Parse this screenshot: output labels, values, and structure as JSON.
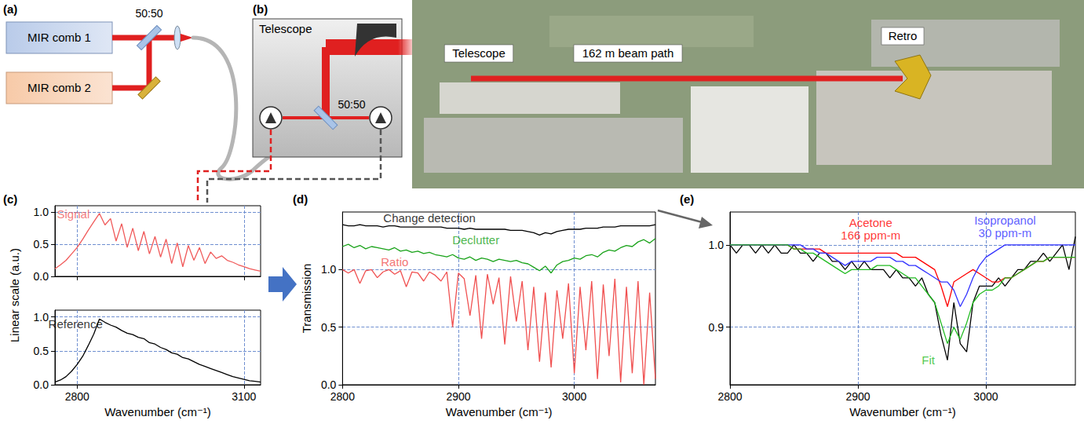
{
  "diagram": {
    "panel_a": {
      "label": "(a)",
      "comb1": "MIR comb 1",
      "comb2": "MIR comb 2",
      "splitter": "50:50"
    },
    "panel_b": {
      "label": "(b)",
      "telescope": "Telescope",
      "splitter": "50:50"
    },
    "photo": {
      "telescope": "Telescope",
      "path": "162 m beam path",
      "retro": "Retro"
    }
  },
  "chart_data": [
    {
      "panel": "(c)",
      "type": "line",
      "xlabel": "Wavenumber (cm⁻¹)",
      "ylabel": "Linear scale (a.u.)",
      "x": [
        2760,
        2770,
        2780,
        2790,
        2800,
        2810,
        2820,
        2830,
        2840,
        2850,
        2860,
        2870,
        2880,
        2890,
        2900,
        2910,
        2920,
        2930,
        2940,
        2950,
        2960,
        2970,
        2980,
        2990,
        3000,
        3010,
        3020,
        3030,
        3040,
        3050,
        3060,
        3070,
        3080,
        3090,
        3100,
        3110,
        3120,
        3130
      ],
      "xlim": [
        2760,
        3130
      ],
      "xticks": [
        2800,
        3100
      ],
      "ylim": [
        0,
        1.1
      ],
      "yticks": [
        {
          "value": 0,
          "label": "0.0"
        },
        {
          "value": 0.5,
          "label": "0.5"
        },
        {
          "value": 1,
          "label": "1.0"
        }
      ],
      "grid": true,
      "series": [
        {
          "name": "Signal",
          "color": "#f05a5a",
          "values": [
            0.12,
            0.18,
            0.25,
            0.35,
            0.45,
            0.58,
            0.72,
            0.85,
            0.98,
            0.8,
            0.9,
            0.55,
            0.82,
            0.45,
            0.75,
            0.4,
            0.7,
            0.35,
            0.62,
            0.3,
            0.58,
            0.2,
            0.52,
            0.15,
            0.48,
            0.25,
            0.45,
            0.2,
            0.38,
            0.28,
            0.32,
            0.25,
            0.22,
            0.18,
            0.15,
            0.12,
            0.1,
            0.08
          ]
        },
        {
          "name": "Reference",
          "color": "#000000",
          "values": [
            0.04,
            0.07,
            0.12,
            0.2,
            0.3,
            0.42,
            0.58,
            0.75,
            0.97,
            0.92,
            0.88,
            0.85,
            0.8,
            0.76,
            0.74,
            0.7,
            0.68,
            0.62,
            0.6,
            0.55,
            0.52,
            0.47,
            0.45,
            0.4,
            0.38,
            0.34,
            0.3,
            0.27,
            0.24,
            0.21,
            0.18,
            0.15,
            0.12,
            0.1,
            0.08,
            0.06,
            0.05,
            0.04
          ]
        }
      ],
      "annotations": [
        {
          "series": 0,
          "x": 2793,
          "y": 0.97
        },
        {
          "series": 1,
          "x": 2797,
          "y": 0.9
        }
      ]
    },
    {
      "panel": "(d)",
      "type": "line",
      "xlabel": "Wavenumber (cm⁻¹)",
      "ylabel": "Transmission",
      "x": [
        2800,
        2805,
        2810,
        2815,
        2820,
        2825,
        2830,
        2835,
        2840,
        2845,
        2850,
        2855,
        2860,
        2865,
        2870,
        2875,
        2880,
        2885,
        2890,
        2895,
        2900,
        2905,
        2910,
        2915,
        2920,
        2925,
        2930,
        2935,
        2940,
        2945,
        2950,
        2955,
        2960,
        2965,
        2970,
        2975,
        2980,
        2985,
        2990,
        2995,
        3000,
        3005,
        3010,
        3015,
        3020,
        3025,
        3030,
        3035,
        3040,
        3045,
        3050,
        3055,
        3060,
        3065,
        3070
      ],
      "xlim": [
        2800,
        3070
      ],
      "xticks": [
        2800,
        2900,
        3000
      ],
      "ylim": [
        0,
        1.5
      ],
      "yticks": [
        {
          "value": 0,
          "label": "0.0"
        },
        {
          "value": 0.5,
          "label": "0.5"
        },
        {
          "value": 1,
          "label": "1.0"
        }
      ],
      "grid": true,
      "series": [
        {
          "name": "Change detection",
          "color": "#000000",
          "values": [
            1.39,
            1.38,
            1.38,
            1.39,
            1.38,
            1.38,
            1.38,
            1.37,
            1.38,
            1.38,
            1.37,
            1.37,
            1.37,
            1.37,
            1.37,
            1.37,
            1.37,
            1.37,
            1.36,
            1.36,
            1.36,
            1.35,
            1.36,
            1.35,
            1.35,
            1.35,
            1.35,
            1.35,
            1.35,
            1.34,
            1.34,
            1.34,
            1.33,
            1.32,
            1.3,
            1.32,
            1.31,
            1.33,
            1.34,
            1.35,
            1.35,
            1.35,
            1.36,
            1.36,
            1.36,
            1.37,
            1.37,
            1.37,
            1.38,
            1.38,
            1.38,
            1.38,
            1.38,
            1.38,
            1.39
          ]
        },
        {
          "name": "Declutter",
          "color": "#1aa31a",
          "values": [
            1.2,
            1.22,
            1.19,
            1.21,
            1.18,
            1.2,
            1.19,
            1.18,
            1.17,
            1.19,
            1.16,
            1.17,
            1.15,
            1.16,
            1.14,
            1.15,
            1.13,
            1.12,
            1.11,
            1.13,
            1.1,
            1.09,
            1.11,
            1.08,
            1.1,
            1.09,
            1.07,
            1.09,
            1.08,
            1.07,
            1.08,
            1.06,
            1.05,
            1.02,
            0.99,
            1.03,
            0.97,
            1.04,
            1.07,
            1.08,
            1.1,
            1.09,
            1.12,
            1.13,
            1.11,
            1.15,
            1.17,
            1.16,
            1.19,
            1.21,
            1.2,
            1.24,
            1.26,
            1.23,
            1.27
          ]
        },
        {
          "name": "Ratio",
          "color": "#f05050",
          "values": [
            1.0,
            0.97,
            1.0,
            0.88,
            0.99,
            1.0,
            0.93,
            0.98,
            1.0,
            0.96,
            0.99,
            0.85,
            0.98,
            0.97,
            0.9,
            0.98,
            0.95,
            0.9,
            0.98,
            0.5,
            0.97,
            0.92,
            0.6,
            0.95,
            0.4,
            0.96,
            0.7,
            0.93,
            0.35,
            0.94,
            0.55,
            0.9,
            0.3,
            0.85,
            0.2,
            0.8,
            0.15,
            0.82,
            0.4,
            0.88,
            0.1,
            0.85,
            0.3,
            0.9,
            0.05,
            0.87,
            0.25,
            0.92,
            0.02,
            0.85,
            0.1,
            0.9,
            0.0,
            0.8,
            0.05
          ]
        }
      ],
      "annotations": [
        {
          "series": 0,
          "x": 2875,
          "y": 1.45
        },
        {
          "series": 1,
          "x": 2915,
          "y": 1.26
        },
        {
          "series": 2,
          "x": 2845,
          "y": 1.07
        }
      ]
    },
    {
      "panel": "(e)",
      "type": "line",
      "x": [
        2800,
        2805,
        2810,
        2815,
        2820,
        2825,
        2830,
        2835,
        2840,
        2845,
        2850,
        2855,
        2860,
        2865,
        2870,
        2875,
        2880,
        2885,
        2890,
        2895,
        2900,
        2905,
        2910,
        2915,
        2920,
        2925,
        2930,
        2935,
        2940,
        2945,
        2950,
        2955,
        2960,
        2965,
        2970,
        2975,
        2980,
        2985,
        2990,
        2995,
        3000,
        3005,
        3010,
        3015,
        3020,
        3025,
        3030,
        3035,
        3040,
        3045,
        3050,
        3055,
        3060,
        3065,
        3070
      ],
      "xlabel": "Wavenumber (cm⁻¹)",
      "xlim": [
        2800,
        3070
      ],
      "xticks": [
        2800,
        2900,
        3000
      ],
      "ylim": [
        0.83,
        1.04
      ],
      "yticks": [
        {
          "value": 0.9,
          "label": "0.9"
        },
        {
          "value": 1,
          "label": "1.0"
        }
      ],
      "grid": true,
      "series": [
        {
          "color": "#000000",
          "values": [
            1.0,
            0.99,
            1.0,
            1.0,
            0.99,
            1.0,
            0.99,
            1.0,
            0.99,
            0.99,
            1.0,
            0.99,
            0.99,
            0.98,
            0.99,
            0.99,
            0.98,
            0.98,
            0.97,
            0.98,
            0.97,
            0.98,
            0.97,
            0.97,
            0.97,
            0.96,
            0.97,
            0.96,
            0.96,
            0.95,
            0.96,
            0.94,
            0.93,
            0.89,
            0.86,
            0.93,
            0.88,
            0.87,
            0.93,
            0.95,
            0.95,
            0.95,
            0.96,
            0.95,
            0.96,
            0.97,
            0.97,
            0.98,
            0.98,
            0.99,
            0.98,
            0.99,
            1.0,
            0.97,
            1.01
          ]
        },
        {
          "name": "Acetone",
          "color": "#ff0000",
          "values": [
            1.0,
            1.0,
            1.0,
            1.0,
            1.0,
            1.0,
            1.0,
            1.0,
            1.0,
            1.0,
            0.995,
            0.995,
            0.995,
            0.995,
            0.995,
            0.99,
            0.99,
            0.99,
            0.99,
            0.99,
            0.99,
            0.99,
            0.99,
            0.99,
            0.99,
            0.99,
            0.99,
            0.985,
            0.985,
            0.985,
            0.98,
            0.975,
            0.97,
            0.95,
            0.925,
            0.955,
            0.96,
            0.965,
            0.97,
            0.965,
            0.96,
            0.955,
            0.955,
            0.96,
            0.96,
            0.965,
            0.97,
            0.975,
            0.98,
            0.98,
            0.985,
            0.985,
            0.985,
            0.985,
            0.985
          ]
        },
        {
          "name": "Isopropanol",
          "color": "#3333ff",
          "values": [
            1.0,
            1.0,
            1.0,
            1.0,
            1.0,
            1.0,
            1.0,
            1.0,
            1.0,
            1.0,
            1.0,
            1.0,
            0.995,
            0.995,
            0.99,
            0.99,
            0.985,
            0.98,
            0.975,
            0.98,
            0.98,
            0.98,
            0.98,
            0.985,
            0.985,
            0.985,
            0.98,
            0.98,
            0.975,
            0.975,
            0.97,
            0.965,
            0.96,
            0.955,
            0.955,
            0.945,
            0.925,
            0.94,
            0.96,
            0.975,
            0.985,
            0.99,
            0.995,
            1.0,
            1.0,
            1.0,
            1.0,
            1.0,
            1.0,
            1.0,
            1.0,
            1.0,
            1.0,
            1.0,
            1.0
          ]
        },
        {
          "name": "Fit",
          "color": "#22bb22",
          "values": [
            1.0,
            1.0,
            1.0,
            1.0,
            1.0,
            1.0,
            1.0,
            1.0,
            1.0,
            1.0,
            0.995,
            0.995,
            0.99,
            0.99,
            0.985,
            0.98,
            0.975,
            0.97,
            0.965,
            0.97,
            0.97,
            0.97,
            0.97,
            0.975,
            0.975,
            0.975,
            0.97,
            0.965,
            0.96,
            0.96,
            0.95,
            0.94,
            0.93,
            0.905,
            0.88,
            0.9,
            0.885,
            0.905,
            0.93,
            0.94,
            0.945,
            0.945,
            0.95,
            0.96,
            0.96,
            0.965,
            0.97,
            0.975,
            0.98,
            0.98,
            0.985,
            0.985,
            0.985,
            0.985,
            0.985
          ]
        }
      ],
      "annotations": [
        {
          "series": 1,
          "x": 2910,
          "y": 1.027
        },
        {
          "text": "166 ppm-m",
          "color": "#ff0000",
          "x": 2910,
          "y": 1.012
        },
        {
          "series": 2,
          "x": 3015,
          "y": 1.03
        },
        {
          "text": "30 ppm-m",
          "color": "#3333ff",
          "x": 3015,
          "y": 1.015
        },
        {
          "series": 3,
          "x": 2955,
          "y": 0.86
        }
      ]
    }
  ]
}
